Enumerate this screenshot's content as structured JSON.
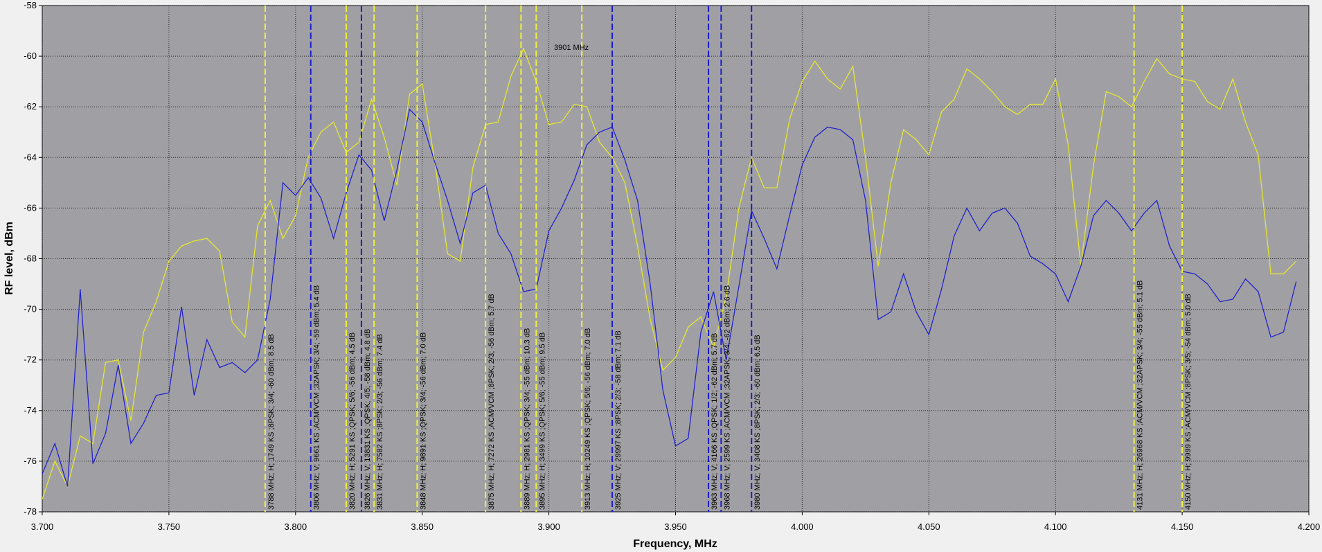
{
  "chart_data": {
    "type": "line",
    "xlabel": "Frequency, MHz",
    "ylabel": "RF level, dBm",
    "cursor_label": "3901 MHz",
    "x": [
      3.7,
      3.705,
      3.71,
      3.715,
      3.72,
      3.725,
      3.73,
      3.735,
      3.74,
      3.745,
      3.75,
      3.755,
      3.76,
      3.765,
      3.77,
      3.775,
      3.78,
      3.785,
      3.79,
      3.795,
      3.8,
      3.805,
      3.81,
      3.815,
      3.82,
      3.825,
      3.83,
      3.835,
      3.84,
      3.845,
      3.85,
      3.855,
      3.86,
      3.865,
      3.87,
      3.875,
      3.88,
      3.885,
      3.89,
      3.895,
      3.9,
      3.905,
      3.91,
      3.915,
      3.92,
      3.925,
      3.93,
      3.935,
      3.94,
      3.945,
      3.95,
      3.955,
      3.96,
      3.965,
      3.97,
      3.975,
      3.98,
      3.985,
      3.99,
      3.995,
      4.0,
      4.005,
      4.01,
      4.015,
      4.02,
      4.025,
      4.03,
      4.035,
      4.04,
      4.045,
      4.05,
      4.055,
      4.06,
      4.065,
      4.07,
      4.075,
      4.08,
      4.085,
      4.09,
      4.095,
      4.1,
      4.105,
      4.11,
      4.115,
      4.12,
      4.125,
      4.13,
      4.135,
      4.14,
      4.145,
      4.15,
      4.155,
      4.16,
      4.165,
      4.17,
      4.175,
      4.18,
      4.185,
      4.19,
      4.195
    ],
    "series": [
      {
        "color": "#e6e632",
        "values": [
          -77.5,
          -76,
          -77,
          -75,
          -75.3,
          -72.1,
          -72,
          -74.4,
          -70.9,
          -69.7,
          -68.1,
          -67.5,
          -67.3,
          -67.2,
          -67.7,
          -70.5,
          -71.1,
          -66.7,
          -65.7,
          -67.2,
          -66.3,
          -64,
          -63,
          -62.6,
          -63.8,
          -63.4,
          -61.7,
          -63.2,
          -65.1,
          -61.5,
          -61.1,
          -64.2,
          -67.8,
          -68.1,
          -64.4,
          -62.7,
          -62.6,
          -60.8,
          -59.7,
          -61,
          -62.7,
          -62.6,
          -61.9,
          -62,
          -63.4,
          -64,
          -65,
          -67.5,
          -70.4,
          -72.4,
          -71.9,
          -70.7,
          -70.3,
          -71.5,
          -69.5,
          -66,
          -64,
          -65.2,
          -65.2,
          -62.5,
          -61,
          -60.2,
          -60.9,
          -61.3,
          -60.4,
          -64,
          -68.3,
          -65,
          -62.9,
          -63.3,
          -63.9,
          -62.2,
          -61.7,
          -60.5,
          -60.9,
          -61.4,
          -62,
          -62.3,
          -61.9,
          -61.9,
          -60.9,
          -63.5,
          -68.3,
          -64.3,
          -61.4,
          -61.6,
          -62,
          -61,
          -60.1,
          -60.7,
          -60.9,
          -61,
          -61.8,
          -62.1,
          -60.9,
          -62.6,
          -63.9,
          -68.6,
          -68.6,
          -68.1
        ]
      },
      {
        "color": "#2222cc",
        "values": [
          -76.5,
          -75.3,
          -77,
          -69.2,
          -76.1,
          -74.9,
          -72.2,
          -75.3,
          -74.5,
          -73.4,
          -73.3,
          -69.9,
          -73.4,
          -71.2,
          -72.3,
          -72.1,
          -72.5,
          -72,
          -69.6,
          -65,
          -65.5,
          -64.8,
          -65.6,
          -67.2,
          -65.4,
          -63.9,
          -64.5,
          -66.5,
          -64.5,
          -62.1,
          -62.6,
          -64.2,
          -65.7,
          -67.4,
          -65.4,
          -65.1,
          -67,
          -67.8,
          -69.3,
          -69.2,
          -66.9,
          -66,
          -64.9,
          -63.5,
          -63,
          -62.8,
          -64.1,
          -65.7,
          -69,
          -73.2,
          -75.4,
          -75.1,
          -70.9,
          -69.3,
          -72,
          -69.1,
          -66.1,
          -67.2,
          -68.4,
          -66.3,
          -64.3,
          -63.2,
          -62.8,
          -62.9,
          -63.3,
          -65.7,
          -70.4,
          -70.1,
          -68.6,
          -70.1,
          -71,
          -69.2,
          -67.1,
          -66,
          -66.9,
          -66.2,
          -66,
          -66.6,
          -67.9,
          -68.2,
          -68.6,
          -69.7,
          -68.3,
          -66.3,
          -65.7,
          -66.2,
          -66.9,
          -66.2,
          -65.7,
          -67.5,
          -68.5,
          -68.6,
          -69,
          -69.7,
          -69.6,
          -68.8,
          -69.3,
          -71.1,
          -70.9,
          -68.9
        ]
      }
    ],
    "markers": [
      {
        "x": 3.788,
        "color": "#f0f040",
        "label": "3788 MHz; H; 1749 KS ;8PSK; 3/4; -60 dBm; 8.5 dB"
      },
      {
        "x": 3.806,
        "color": "#1a1acc",
        "label": "3806 MHz; V; 9661 KS ;ACM/VCM ;32APSK; 3/4; -59 dBm; 5.4 dB"
      },
      {
        "x": 3.82,
        "color": "#f0f040",
        "label": "3820 MHz; H; 5291 KS ;QPSK; 5/6; -56 dBm; 4.5 dB"
      },
      {
        "x": 3.826,
        "color": "#1a1acc",
        "label": "3826 MHz; V; 13831 KS ;QPSK; 4/5; -58 dBm; 4.8 dB"
      },
      {
        "x": 3.831,
        "color": "#f0f040",
        "label": "3831 MHz; H; 7582 KS ;8PSK; 2/3; -56 dBm; 7.4 dB"
      },
      {
        "x": 3.848,
        "color": "#f0f040",
        "label": "3848 MHz; H; 9891 KS ;QPSK; 3/4; -56 dBm; 7.0 dB"
      },
      {
        "x": 3.875,
        "color": "#f0f040",
        "label": "3875 MHz; H; 7272 KS ;ACM/VCM ;8PSK; 2/3; -56 dBm; 5.7 dB"
      },
      {
        "x": 3.889,
        "color": "#f0f040",
        "label": "3889 MHz; H; 2981 KS ;QPSK; 3/4; -55 dBm; 10.3 dB"
      },
      {
        "x": 3.895,
        "color": "#f0f040",
        "label": "3895 MHz; H; 3499 KS ;QPSK; 5/6; -55 dBm; 9.5 dB"
      },
      {
        "x": 3.913,
        "color": "#f0f040",
        "label": "3913 MHz; H; 10249 KS ;QPSK; 5/6; -56 dBm; 7.0 dB"
      },
      {
        "x": 3.925,
        "color": "#1a1acc",
        "label": "3925 MHz; V; 29997 KS ;8PSK; 2/3; -58 dBm; 7.1 dB"
      },
      {
        "x": 3.963,
        "color": "#1a1acc",
        "label": "3963 MHz; V; 4166 KS ;QPSK; 1/2; -62 dBm; 5.7 dB"
      },
      {
        "x": 3.968,
        "color": "#1a1acc",
        "label": "3968 MHz; V; 2599 KS ;ACM/VCM ;32APSK; 3/4; -62 dBm; 2.6 dB"
      },
      {
        "x": 3.98,
        "color": "#1a1acc",
        "label": "3980 MHz; V; 3408 KS ;8PSK; 2/3; -60 dBm; 6.5 dB"
      },
      {
        "x": 4.131,
        "color": "#f0f040",
        "label": "4131 MHz; H; 26968 KS ;ACM/VCM ;32APSK; 3/4; -55 dBm; 5.1 dB"
      },
      {
        "x": 4.15,
        "color": "#f0f040",
        "label": "4150 MHz; H; 9999 KS ;ACM/VCM ;8PSK; 3/5; -54 dBm; 5.0 dB"
      }
    ],
    "xlim": [
      3.7,
      4.2
    ],
    "xticks": [
      {
        "value": 3.7,
        "label": "3.700"
      },
      {
        "value": 3.75,
        "label": "3.750"
      },
      {
        "value": 3.8,
        "label": "3.800"
      },
      {
        "value": 3.85,
        "label": "3.850"
      },
      {
        "value": 3.9,
        "label": "3.900"
      },
      {
        "value": 3.95,
        "label": "3.950"
      },
      {
        "value": 4.0,
        "label": "4.000"
      },
      {
        "value": 4.05,
        "label": "4.050"
      },
      {
        "value": 4.1,
        "label": "4.100"
      },
      {
        "value": 4.15,
        "label": "4.150"
      },
      {
        "value": 4.2,
        "label": "4.200"
      }
    ],
    "ylim": [
      -78,
      -58
    ],
    "yticks": [
      -78,
      -76,
      -74,
      -72,
      -70,
      -68,
      -66,
      -64,
      -62,
      -60,
      -58
    ],
    "grid": true,
    "background": "#a0a0a4"
  }
}
